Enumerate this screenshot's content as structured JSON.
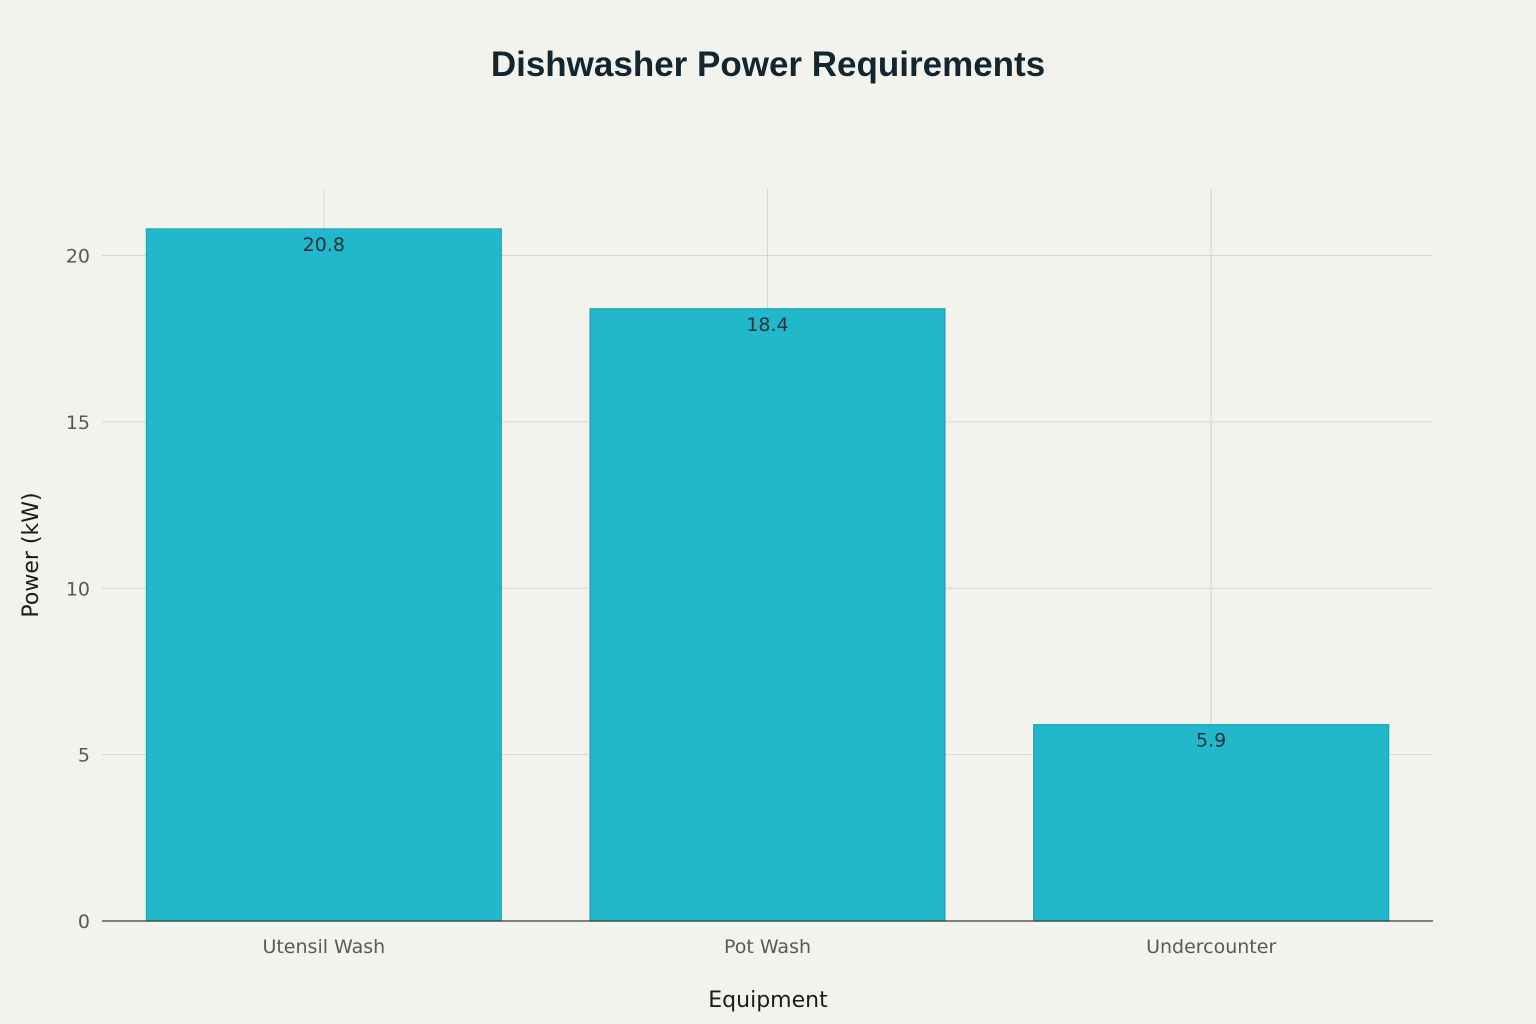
{
  "chart_data": {
    "type": "bar",
    "title": "Dishwasher Power Requirements",
    "xlabel": "Equipment",
    "ylabel": "Power (kW)",
    "categories": [
      "Utensil Wash",
      "Pot Wash",
      "Undercounter"
    ],
    "values": [
      20.8,
      18.4,
      5.9
    ],
    "data_labels": [
      "20.8",
      "18.4",
      "5.9"
    ],
    "y_ticks": [
      0,
      5,
      10,
      15,
      20
    ],
    "ylim": [
      0,
      22
    ],
    "grid": true,
    "legend": "none",
    "bar_color": "#21b8cc",
    "bar_edge_color": "#1aa3b6"
  }
}
